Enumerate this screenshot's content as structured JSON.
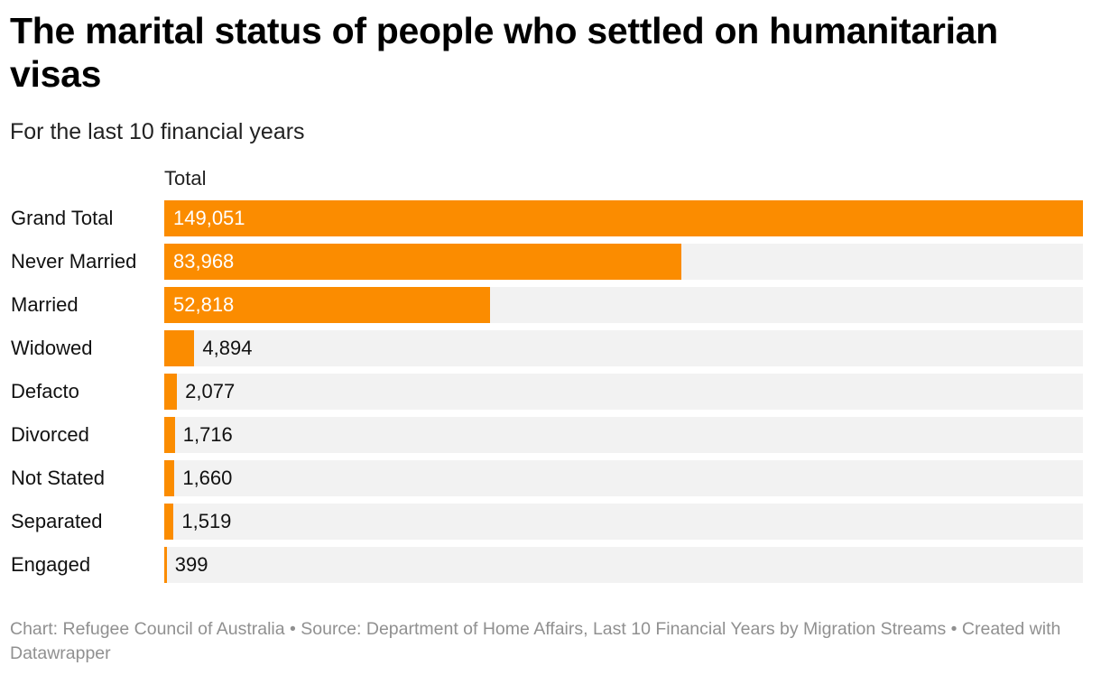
{
  "header": {
    "title": "The marital status of people who settled on humanitarian visas",
    "subtitle": "For the last 10 financial years",
    "column_label": "Total"
  },
  "footer": {
    "text": "Chart: Refugee Council of Australia • Source: Department of Home Affairs, Last 10 Financial Years by Migration Streams • Created with Datawrapper"
  },
  "colors": {
    "bar": "#fb8c00",
    "track": "#f2f2f2",
    "label_inside": "#ffffff",
    "label_outside": "#111111"
  },
  "chart_data": {
    "type": "bar",
    "orientation": "horizontal",
    "title": "The marital status of people who settled on humanitarian visas",
    "subtitle": "For the last 10 financial years",
    "series_label": "Total",
    "categories": [
      "Grand Total",
      "Never Married",
      "Married",
      "Widowed",
      "Defacto",
      "Divorced",
      "Not Stated",
      "Separated",
      "Engaged"
    ],
    "values": [
      149051,
      83968,
      52818,
      4894,
      2077,
      1716,
      1660,
      1519,
      399
    ],
    "value_labels": [
      "149,051",
      "83,968",
      "52,818",
      "4,894",
      "2,077",
      "1,716",
      "1,660",
      "1,519",
      "399"
    ],
    "xlim": [
      0,
      149051
    ],
    "grid": false,
    "legend": "none"
  }
}
